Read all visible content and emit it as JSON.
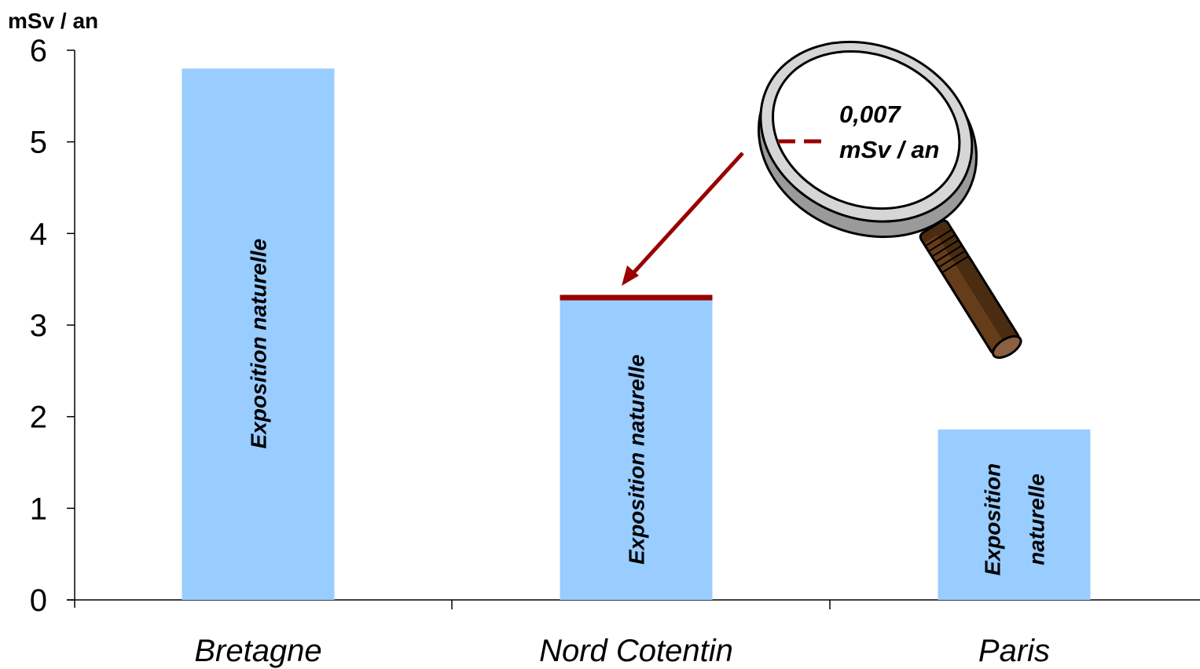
{
  "chart_data": {
    "type": "bar",
    "ylabel": "mSv / an",
    "ylim": [
      0,
      6
    ],
    "yticks": [
      "0",
      "1",
      "2",
      "3",
      "4",
      "5",
      "6"
    ],
    "categories": [
      "Bretagne",
      "Nord Cotentin",
      "Paris"
    ],
    "series": [
      {
        "values": [
          5.8,
          3.27,
          1.86
        ],
        "bar_labels": [
          [
            "Exposition naturelle"
          ],
          [
            "Exposition naturelle"
          ],
          [
            "Exposition",
            "naturelle"
          ]
        ],
        "color": "#99ccff"
      },
      {
        "values": [
          0,
          0.007,
          0
        ],
        "color": "#990000"
      }
    ],
    "annotation": {
      "line1": "0,007",
      "line2": "mSv / an",
      "color": "#990000"
    },
    "grid": false,
    "legend": "none"
  }
}
